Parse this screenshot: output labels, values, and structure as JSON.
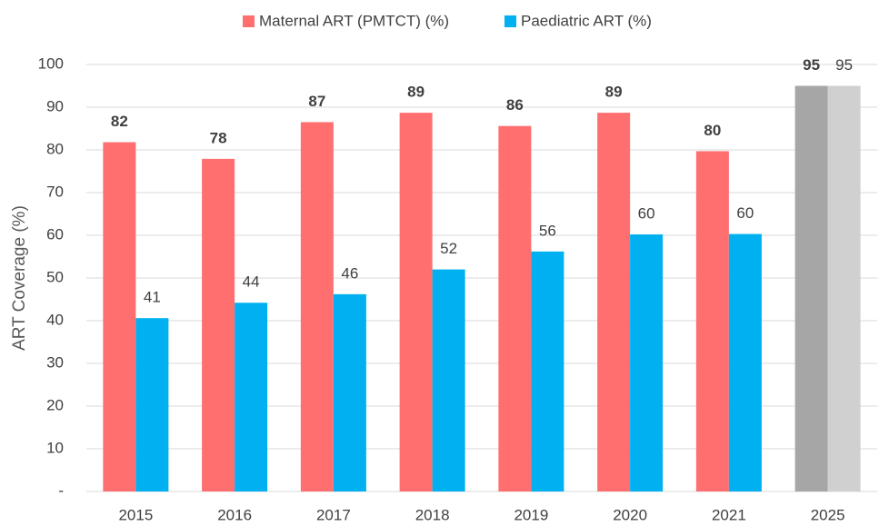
{
  "chart_data": {
    "type": "bar",
    "y_label": "ART Coverage (%)",
    "categories": [
      "2015",
      "2016",
      "2017",
      "2018",
      "2019",
      "2020",
      "2021",
      "2025"
    ],
    "series": [
      {
        "name": "Maternal ART (PMTCT) (%)",
        "color": "#ff6f6f",
        "colors": [
          "#ff6f6f",
          "#ff6f6f",
          "#ff6f6f",
          "#ff6f6f",
          "#ff6f6f",
          "#ff6f6f",
          "#ff6f6f",
          "#a6a6a6"
        ],
        "bold_labels": true,
        "values": [
          81.8,
          77.9,
          86.5,
          88.7,
          85.6,
          88.7,
          79.7,
          95
        ],
        "value_labels": [
          "82",
          "78",
          "87",
          "89",
          "86",
          "89",
          "80",
          "95"
        ]
      },
      {
        "name": "Paediatric ART (%)",
        "color": "#00b0f0",
        "colors": [
          "#00b0f0",
          "#00b0f0",
          "#00b0f0",
          "#00b0f0",
          "#00b0f0",
          "#00b0f0",
          "#00b0f0",
          "#d0d0d0"
        ],
        "bold_labels": false,
        "values": [
          40.6,
          44.2,
          46.2,
          52,
          56.2,
          60.2,
          60.3,
          95
        ],
        "value_labels": [
          "41",
          "44",
          "46",
          "52",
          "56",
          "60",
          "60",
          "95"
        ]
      }
    ],
    "ylim": [
      0,
      100
    ],
    "yticks": [
      {
        "value": 0,
        "label": "-"
      },
      10,
      20,
      30,
      40,
      50,
      60,
      70,
      80,
      90,
      100
    ],
    "grid": true,
    "legend": "top"
  }
}
